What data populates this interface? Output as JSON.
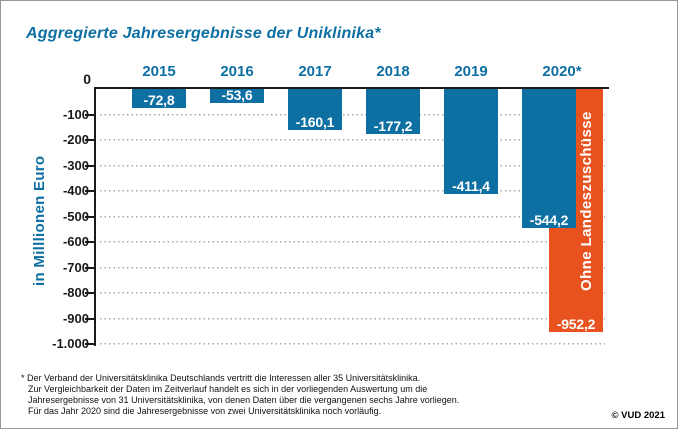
{
  "header": {
    "title": "Aggregierte Jahresergebnisse der Uniklinika*"
  },
  "y_axis": {
    "label": "in Milllionen Euro",
    "zero": "0",
    "ticks": [
      "-100",
      "-200",
      "-300",
      "-400",
      "-500",
      "-600",
      "-700",
      "-800",
      "-900",
      "-1.000"
    ]
  },
  "bars": [
    {
      "year": "2015",
      "label": "-72,8",
      "value": -72.8
    },
    {
      "year": "2016",
      "label": "-53,6",
      "value": -53.6
    },
    {
      "year": "2017",
      "label": "-160,1",
      "value": -160.1
    },
    {
      "year": "2018",
      "label": "-177,2",
      "value": -177.2
    },
    {
      "year": "2019",
      "label": "-411,4",
      "value": -411.4
    },
    {
      "year": "2020*",
      "label": "-544,2",
      "value": -544.2
    }
  ],
  "special_bar": {
    "label": "-952,2",
    "value": -952.2,
    "annotation": "Ohne Landeszuschüsse"
  },
  "colors": {
    "blue": "#0e6fa3",
    "orange": "#e8521f"
  },
  "footnote": {
    "lines": [
      "* Der Verband der Universitätsklinika Deutschlands vertritt die Interessen aller 35 Universitätsklinika.",
      "Zur Vergleichbarkeit der Daten im Zeitverlauf handelt es sich in der vorliegenden Auswertung um die",
      "Jahresergebnisse von 31 Universitätsklinika, von denen Daten über die vergangenen sechs Jahre vorliegen.",
      "Für das Jahr 2020 sind die Jahresergebnisse von zwei Universitätsklinika noch vorläufig."
    ]
  },
  "copyright": "© VUD 2021",
  "chart_data": {
    "type": "bar",
    "title": "Aggregierte Jahresergebnisse der Uniklinika*",
    "categories": [
      "2015",
      "2016",
      "2017",
      "2018",
      "2019",
      "2020*"
    ],
    "series": [
      {
        "name": "Jahresergebnis",
        "color": "#0e6fa3",
        "values": [
          -72.8,
          -53.6,
          -160.1,
          -177.2,
          -411.4,
          -544.2
        ]
      },
      {
        "name": "Ohne Landeszuschüsse",
        "color": "#e8521f",
        "values": [
          null,
          null,
          null,
          null,
          null,
          -952.2
        ]
      }
    ],
    "ylabel": "in Milllionen Euro",
    "ylim": [
      -1000,
      0
    ],
    "ytick_step": 100,
    "grid": true,
    "value_labels": true,
    "legend_position": "none"
  }
}
